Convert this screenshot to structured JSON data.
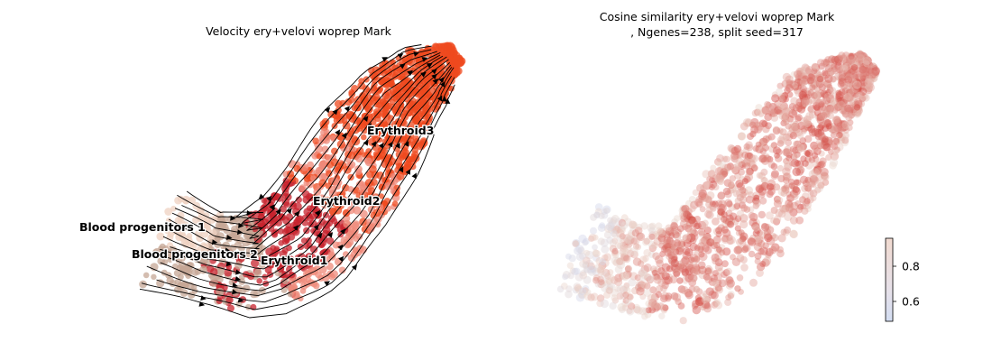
{
  "chart_data": [
    {
      "type": "scatter",
      "subtype": "embedding-velocity-stream",
      "title": "Velocity ery+velovi woprep Mark",
      "axes_visible": false,
      "streamlines": true,
      "clusters": [
        {
          "name": "Blood progenitors 1",
          "color": "#efd2c2"
        },
        {
          "name": "Blood progenitors 2",
          "color": "#c6a796"
        },
        {
          "name": "Erythroid1",
          "color": "#c7232d"
        },
        {
          "name": "Erythroid2",
          "color": "#ef8a7a"
        },
        {
          "name": "Erythroid3",
          "color": "#ef4a1f"
        }
      ]
    },
    {
      "type": "scatter",
      "subtype": "embedding-colored",
      "title_line1": "Cosine similarity ery+velovi woprep Mark",
      "title_line2": ", Ngenes=238, split seed=317",
      "axes_visible": false,
      "colormap": "coolwarm",
      "colorbar": {
        "ticks": [
          0.6,
          0.8
        ],
        "vmin": 0.48,
        "vmax": 0.96,
        "placement": "right"
      },
      "colors": {
        "low": "#cdd8f2",
        "mid": "#ecd6cc",
        "high": "#d2423c"
      }
    }
  ]
}
